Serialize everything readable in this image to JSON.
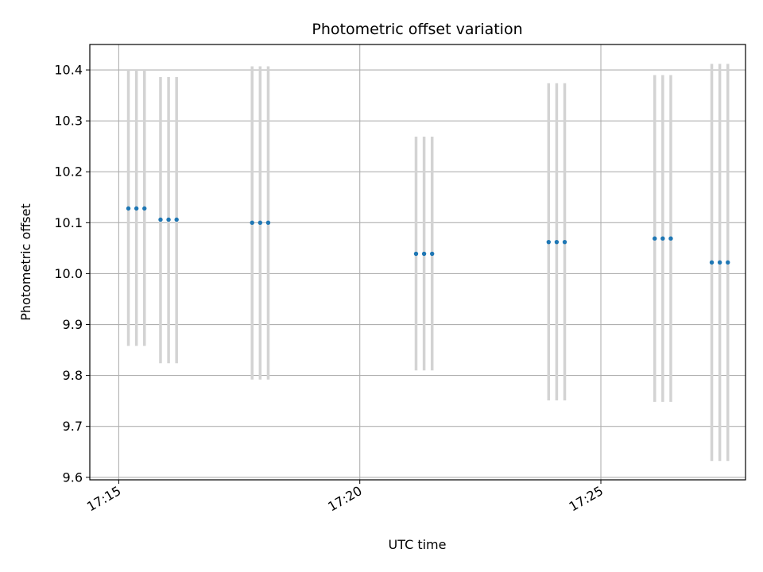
{
  "chart_data": {
    "type": "scatter",
    "title": "Photometric offset variation",
    "xlabel": "UTC time",
    "ylabel": "Photometric offset",
    "x_ticks": [
      "17:15",
      "17:20",
      "17:25"
    ],
    "y_ticks": [
      "9.6",
      "9.7",
      "9.8",
      "9.9",
      "10.0",
      "10.1",
      "10.2",
      "10.3",
      "10.4"
    ],
    "xlim": [
      "17:14:24",
      "17:28:00"
    ],
    "ylim": [
      9.595,
      10.45
    ],
    "grid": true,
    "point_color": "#1f77b4",
    "errorbar_color": "#d3d3d3",
    "points": [
      {
        "t": "17:15:12",
        "y": 10.128,
        "low": 9.858,
        "high": 10.4
      },
      {
        "t": "17:15:22",
        "y": 10.128,
        "low": 9.858,
        "high": 10.4
      },
      {
        "t": "17:15:32",
        "y": 10.128,
        "low": 9.858,
        "high": 10.4
      },
      {
        "t": "17:15:52",
        "y": 10.106,
        "low": 9.824,
        "high": 10.386
      },
      {
        "t": "17:16:02",
        "y": 10.106,
        "low": 9.824,
        "high": 10.386
      },
      {
        "t": "17:16:12",
        "y": 10.106,
        "low": 9.824,
        "high": 10.386
      },
      {
        "t": "17:17:46",
        "y": 10.1,
        "low": 9.792,
        "high": 10.407
      },
      {
        "t": "17:17:56",
        "y": 10.1,
        "low": 9.792,
        "high": 10.407
      },
      {
        "t": "17:18:06",
        "y": 10.1,
        "low": 9.792,
        "high": 10.407
      },
      {
        "t": "17:21:10",
        "y": 10.039,
        "low": 9.81,
        "high": 10.269
      },
      {
        "t": "17:21:20",
        "y": 10.039,
        "low": 9.81,
        "high": 10.269
      },
      {
        "t": "17:21:30",
        "y": 10.039,
        "low": 9.81,
        "high": 10.269
      },
      {
        "t": "17:23:55",
        "y": 10.062,
        "low": 9.751,
        "high": 10.374
      },
      {
        "t": "17:24:05",
        "y": 10.062,
        "low": 9.751,
        "high": 10.374
      },
      {
        "t": "17:24:15",
        "y": 10.062,
        "low": 9.751,
        "high": 10.374
      },
      {
        "t": "17:26:07",
        "y": 10.069,
        "low": 9.748,
        "high": 10.39
      },
      {
        "t": "17:26:17",
        "y": 10.069,
        "low": 9.748,
        "high": 10.39
      },
      {
        "t": "17:26:27",
        "y": 10.069,
        "low": 9.748,
        "high": 10.39
      },
      {
        "t": "17:27:18",
        "y": 10.022,
        "low": 9.632,
        "high": 10.412
      },
      {
        "t": "17:27:28",
        "y": 10.022,
        "low": 9.632,
        "high": 10.412
      },
      {
        "t": "17:27:38",
        "y": 10.022,
        "low": 9.632,
        "high": 10.412
      }
    ]
  }
}
